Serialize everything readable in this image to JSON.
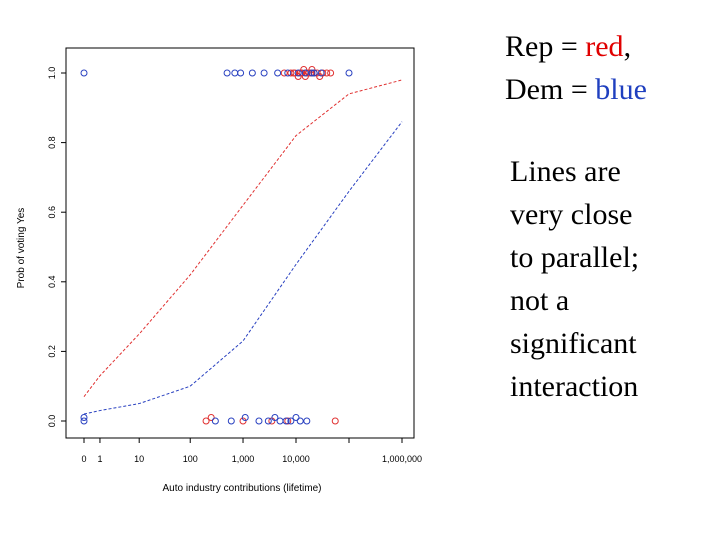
{
  "chart_data": {
    "type": "scatter",
    "xlabel": "Auto industry contributions (lifetime)",
    "ylabel": "Prob of voting Yes",
    "x_scale": "log10(x+1)",
    "xlim": [
      0,
      1000000
    ],
    "ylim": [
      0,
      1
    ],
    "x_ticks": [
      {
        "value": 0,
        "label": "0"
      },
      {
        "value": 1,
        "label": "1"
      },
      {
        "value": 10,
        "label": "10"
      },
      {
        "value": 100,
        "label": "100"
      },
      {
        "value": 1000,
        "label": "1,000"
      },
      {
        "value": 10000,
        "label": "10,000"
      },
      {
        "value": 100000,
        "label": ""
      },
      {
        "value": 1000000,
        "label": "1,000,000"
      }
    ],
    "y_ticks": [
      {
        "value": 0.0,
        "label": "0.0"
      },
      {
        "value": 0.2,
        "label": "0.2"
      },
      {
        "value": 0.4,
        "label": "0.4"
      },
      {
        "value": 0.6,
        "label": "0.6"
      },
      {
        "value": 0.8,
        "label": "0.8"
      },
      {
        "value": 1.0,
        "label": "1.0"
      }
    ],
    "grid": false,
    "series": [
      {
        "color": "#e03030",
        "kind": "curve",
        "style": "dashed",
        "x": [
          0,
          1,
          10,
          100,
          1000,
          10000,
          100000,
          1000000
        ],
        "y": [
          0.07,
          0.13,
          0.25,
          0.42,
          0.62,
          0.82,
          0.94,
          0.98
        ]
      },
      {
        "color": "#2840c0",
        "kind": "curve",
        "style": "dashed",
        "x": [
          0,
          1,
          10,
          100,
          1000,
          10000,
          100000,
          1000000
        ],
        "y": [
          0.02,
          0.03,
          0.05,
          0.1,
          0.23,
          0.45,
          0.66,
          0.86
        ]
      },
      {
        "color": "#e03030",
        "kind": "points",
        "x": [
          250,
          1000,
          3500,
          6000,
          8000,
          9500,
          11000,
          12000,
          13000,
          14000,
          15000,
          16000,
          17500,
          19000,
          20000,
          22000,
          25000,
          28000,
          32000,
          38000,
          45000,
          55000,
          200,
          7000,
          9000
        ],
        "y": [
          0.01,
          0.0,
          0.0,
          1.0,
          1.0,
          1.0,
          0.99,
          1.0,
          1.0,
          1.01,
          0.99,
          1.0,
          1.0,
          1.0,
          1.01,
          1.0,
          1.0,
          0.99,
          1.0,
          1.0,
          1.0,
          0.0,
          0.0,
          0.0,
          1.0
        ]
      },
      {
        "color": "#2840c0",
        "kind": "points",
        "x": [
          0,
          0,
          0,
          300,
          600,
          1100,
          2000,
          3000,
          4000,
          5000,
          6500,
          8000,
          10000,
          12000,
          16000,
          20000,
          30000,
          500,
          700,
          900,
          1500,
          2500,
          4500,
          7000,
          11000,
          15000,
          22000,
          100000
        ],
        "y": [
          1.0,
          0.01,
          0.0,
          0.0,
          0.0,
          0.01,
          0.0,
          0.0,
          0.01,
          0.0,
          0.0,
          0.0,
          0.01,
          0.0,
          0.0,
          1.0,
          1.0,
          1.0,
          1.0,
          1.0,
          1.0,
          1.0,
          1.0,
          1.0,
          1.0,
          1.0,
          1.0,
          1.0
        ]
      }
    ]
  },
  "legend_note": {
    "rep_prefix": "Rep = ",
    "rep_word": "red",
    "rep_suffix": ",",
    "dem_prefix": "Dem = ",
    "dem_word": "blue",
    "color_rep": "#e00000",
    "color_dem": "#1f3fbf"
  },
  "comment": {
    "lines": [
      "Lines are",
      "very close",
      "to parallel;",
      "not a",
      "significant",
      "interaction"
    ]
  }
}
